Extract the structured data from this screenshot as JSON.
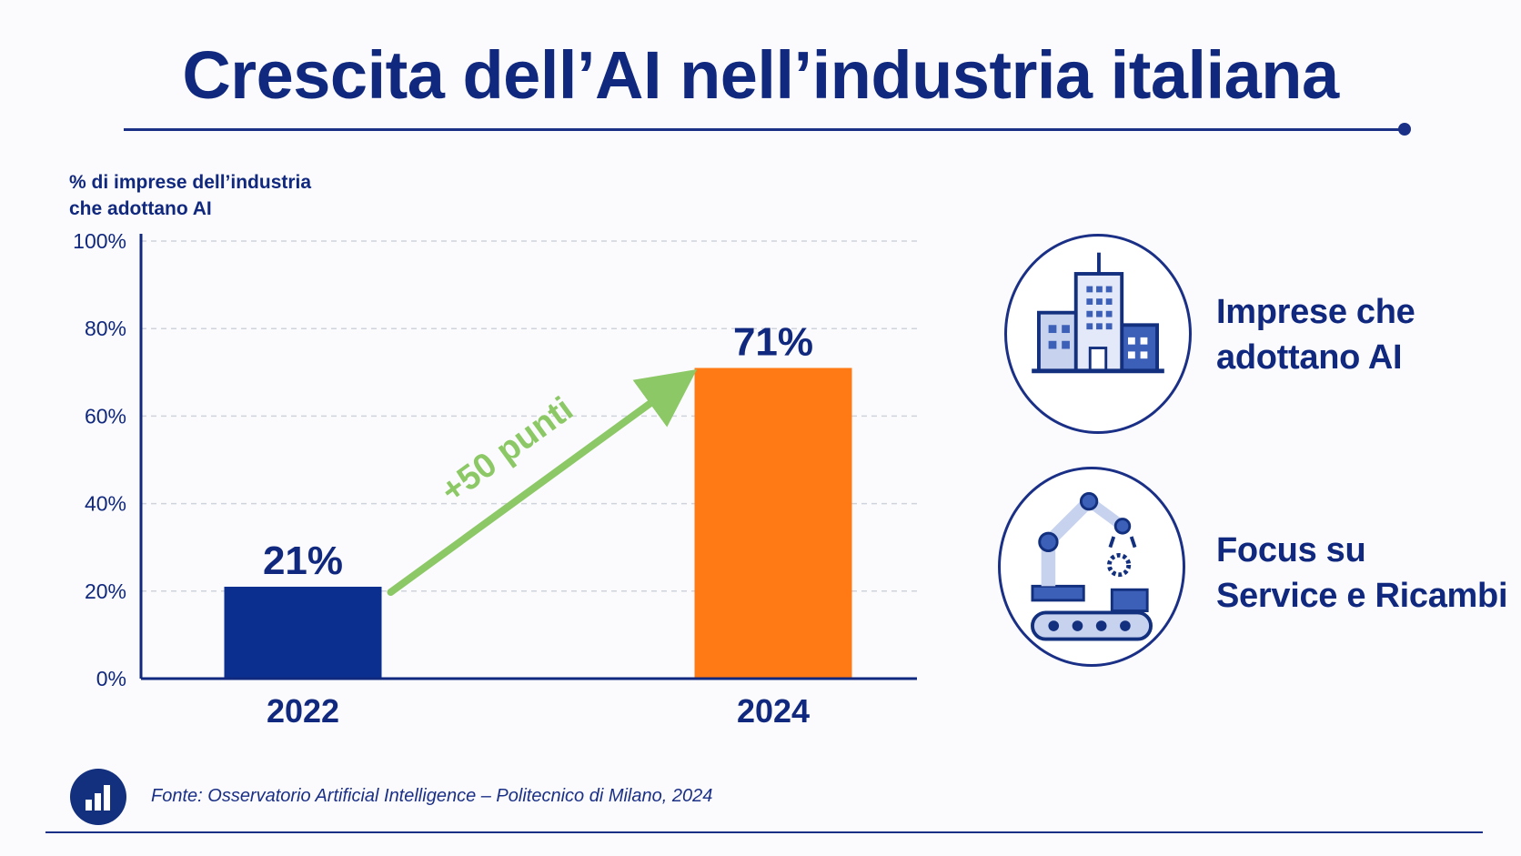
{
  "title": "Crescita dell’AI nell’industria italiana",
  "colors": {
    "navy": "#10287e",
    "bar_2022": "#0a2f8f",
    "bar_2024": "#ff7a14",
    "arrow": "#8cc865",
    "grid": "#cfd3dc"
  },
  "chart_data": {
    "type": "bar",
    "title": "",
    "ylabel": "% di imprese dell’industria che adottano AI",
    "ylabel_lines": [
      "% di imprese dell’industria",
      "che adottano AI"
    ],
    "categories": [
      "2022",
      "2024"
    ],
    "values": [
      21,
      71
    ],
    "value_labels": [
      "21%",
      "71%"
    ],
    "bar_colors": [
      "#0a2f8f",
      "#ff7a14"
    ],
    "ylim": [
      0,
      100
    ],
    "yticks": [
      0,
      20,
      40,
      60,
      80,
      100
    ],
    "ytick_labels": [
      "0%",
      "20%",
      "40%",
      "60%",
      "80%",
      "100%"
    ],
    "grid": true,
    "annotation": {
      "text": "+50 punti",
      "from_category": "2022",
      "to_category": "2024"
    }
  },
  "features": [
    {
      "icon": "office-buildings-icon",
      "line1": "Imprese che",
      "line2": "adottano AI"
    },
    {
      "icon": "robot-arm-conveyor-icon",
      "line1": "Focus su",
      "line2": "Service e Ricambi"
    }
  ],
  "source": {
    "icon": "bar-chart-icon",
    "text": "Fonte: Osservatorio Artificial Intelligence – Politecnico di Milano, 2024"
  }
}
